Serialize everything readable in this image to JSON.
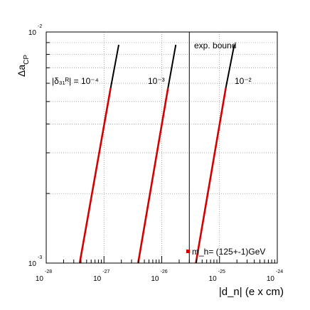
{
  "chart_data": {
    "type": "line",
    "xlabel": "|d_n| (e x cm)",
    "ylabel": "Δa_CP",
    "x_scale": "log",
    "y_scale": "log",
    "xlim": [
      1e-28,
      1e-24
    ],
    "ylim": [
      0.001,
      0.01
    ],
    "x_ticks": [
      {
        "value": 1e-28,
        "base": "10",
        "exp": "-28"
      },
      {
        "value": 1e-27,
        "base": "10",
        "exp": "-27"
      },
      {
        "value": 1e-26,
        "base": "10",
        "exp": "-26"
      },
      {
        "value": 1e-25,
        "base": "10",
        "exp": "-25"
      },
      {
        "value": 1e-24,
        "base": "10",
        "exp": "-24"
      }
    ],
    "y_ticks": [
      {
        "value": 0.001,
        "base": "10",
        "exp": "-3"
      },
      {
        "value": 0.01,
        "base": "10",
        "exp": "-2"
      }
    ],
    "grid": true,
    "series": [
      {
        "label": "10^{-4}",
        "points": [
          [
            3.8e-28,
            0.001
          ],
          [
            1.3e-27,
            0.0057
          ],
          [
            1.8e-27,
            0.0088
          ]
        ]
      },
      {
        "label": "10^{-3}",
        "points": [
          [
            3.9e-27,
            0.001
          ],
          [
            1.28e-26,
            0.0057
          ],
          [
            1.75e-26,
            0.0088
          ]
        ]
      },
      {
        "label": "10^{-2}",
        "points": [
          [
            3.9e-26,
            0.001
          ],
          [
            1.28e-25,
            0.0057
          ],
          [
            1.8e-25,
            0.0088
          ]
        ]
      }
    ],
    "exp_bound": {
      "x": 3e-26,
      "label": "exp. bound"
    },
    "annotations": {
      "delta_label": "|δ₃₁ᴿ| = 10⁻⁴",
      "label_1e3": "10⁻³",
      "label_1e2": "10⁻²",
      "legend": "m_h= (125+-1)GeV"
    },
    "colors": {
      "band": "#d40000",
      "tip": "#000000",
      "grid": "#7a7a7a"
    }
  }
}
